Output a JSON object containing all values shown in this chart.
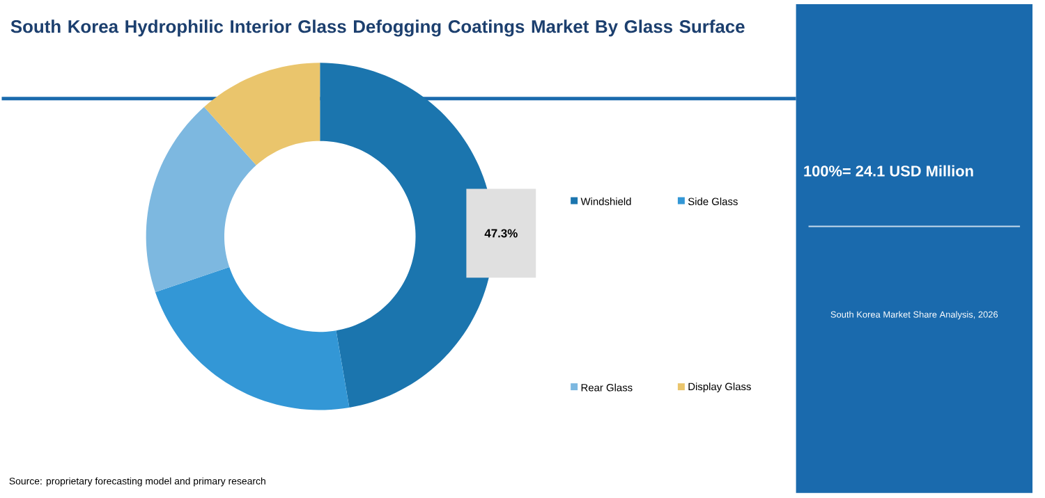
{
  "chart_data": {
    "type": "donut",
    "title": "South Korea Hydrophilic Interior Glass Defogging Coatings Market By Glass Surface",
    "categories": [
      "Windshield",
      "Side Glass",
      "Rear Glass",
      "Display Glass"
    ],
    "values": [
      47.3,
      22.5,
      18.6,
      11.6
    ],
    "colors": [
      "#1b75ae",
      "#3397d6",
      "#7db8e0",
      "#eac56c"
    ],
    "value_labels": [
      "47.3%",
      null,
      null,
      null
    ],
    "legend": "right",
    "annotations": [
      "100%= 24.1 USD Million",
      "South Korea Market Share Analysis, 2026",
      "Source: proprietary forecasting model and primary research"
    ]
  }
}
